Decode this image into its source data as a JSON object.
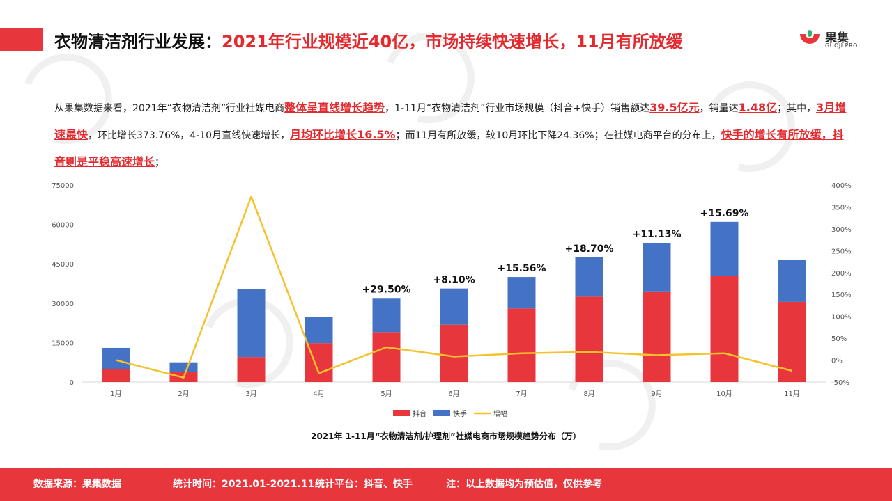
{
  "title": {
    "part1": "衣物清洁剂行业发展：",
    "part2": "2021年行业规模近40亿，市场持续快速增长，11月有所放缓"
  },
  "logo": {
    "name": "果集",
    "sub": "GUOJI.PRO"
  },
  "paragraph": [
    {
      "t": "从果集数据来看，2021年“衣物清洁剂”行业社媒电商"
    },
    {
      "t": "整体呈直线增长趋势",
      "h": true
    },
    {
      "t": "，1-11月“衣物清洁剂”行业市场规模（抖音+快手）销售额达"
    },
    {
      "t": "39.5亿元",
      "h": true
    },
    {
      "t": "，销量达"
    },
    {
      "t": "1.48亿",
      "h": true
    },
    {
      "t": "；其中，"
    },
    {
      "t": "3月增速最快",
      "h": true
    },
    {
      "t": "，环比增长373.76%，4-10月直线快速增长，"
    },
    {
      "t": "月均环比增长16.5%",
      "h": true
    },
    {
      "t": "；而11月有所放缓，较10月环比下降24.36%；在社媒电商平台的分布上，"
    },
    {
      "t": "快手的增长有所放缓，抖音则是平稳高速增长",
      "h": true
    },
    {
      "t": "；"
    }
  ],
  "chart_data": {
    "type": "bar",
    "stacked": true,
    "title": "2021年 1-11月“衣物清洁剂/护理剂”社媒电商市场规模趋势分布（万）",
    "categories": [
      "1月",
      "2月",
      "3月",
      "4月",
      "5月",
      "6月",
      "7月",
      "8月",
      "9月",
      "10月",
      "11月"
    ],
    "series": [
      {
        "name": "抖音",
        "values": [
          4800,
          3800,
          9500,
          14800,
          19000,
          21800,
          28000,
          32500,
          34500,
          40500,
          30500
        ],
        "color": "#e8363d"
      },
      {
        "name": "快手",
        "values": [
          8200,
          3700,
          26000,
          10000,
          13000,
          13800,
          12000,
          15000,
          18500,
          20500,
          16000
        ],
        "color": "#4472c4"
      }
    ],
    "line": {
      "name": "增幅",
      "values": [
        0,
        -40,
        373.76,
        -30,
        29.5,
        8.1,
        15.56,
        18.7,
        11.13,
        15.69,
        -24.36
      ],
      "color": "#f5c22c"
    },
    "bar_labels": [
      "",
      "",
      "",
      "",
      "+29.50%",
      "+8.10%",
      "+15.56%",
      "+18.70%",
      "+11.13%",
      "+15.69%",
      ""
    ],
    "y_left": {
      "min": 0,
      "max": 75000,
      "ticks": [
        "0",
        "15000",
        "30000",
        "45000",
        "60000",
        "75000"
      ]
    },
    "y_right": {
      "min": -50,
      "max": 400,
      "ticks": [
        "-50%",
        "0%",
        "50%",
        "100%",
        "150%",
        "200%",
        "250%",
        "300%",
        "350%",
        "400%"
      ]
    },
    "legend_position": "bottom"
  },
  "footer": {
    "source": "数据来源：果集数据",
    "period": "统计时间：2021.01-2021.11",
    "platform": "统计平台：抖音、快手",
    "note": "注：以上数据均为预估值，仅供参考"
  },
  "colors": {
    "accent": "#e8363d",
    "blue": "#4472c4",
    "line": "#f5c22c"
  }
}
